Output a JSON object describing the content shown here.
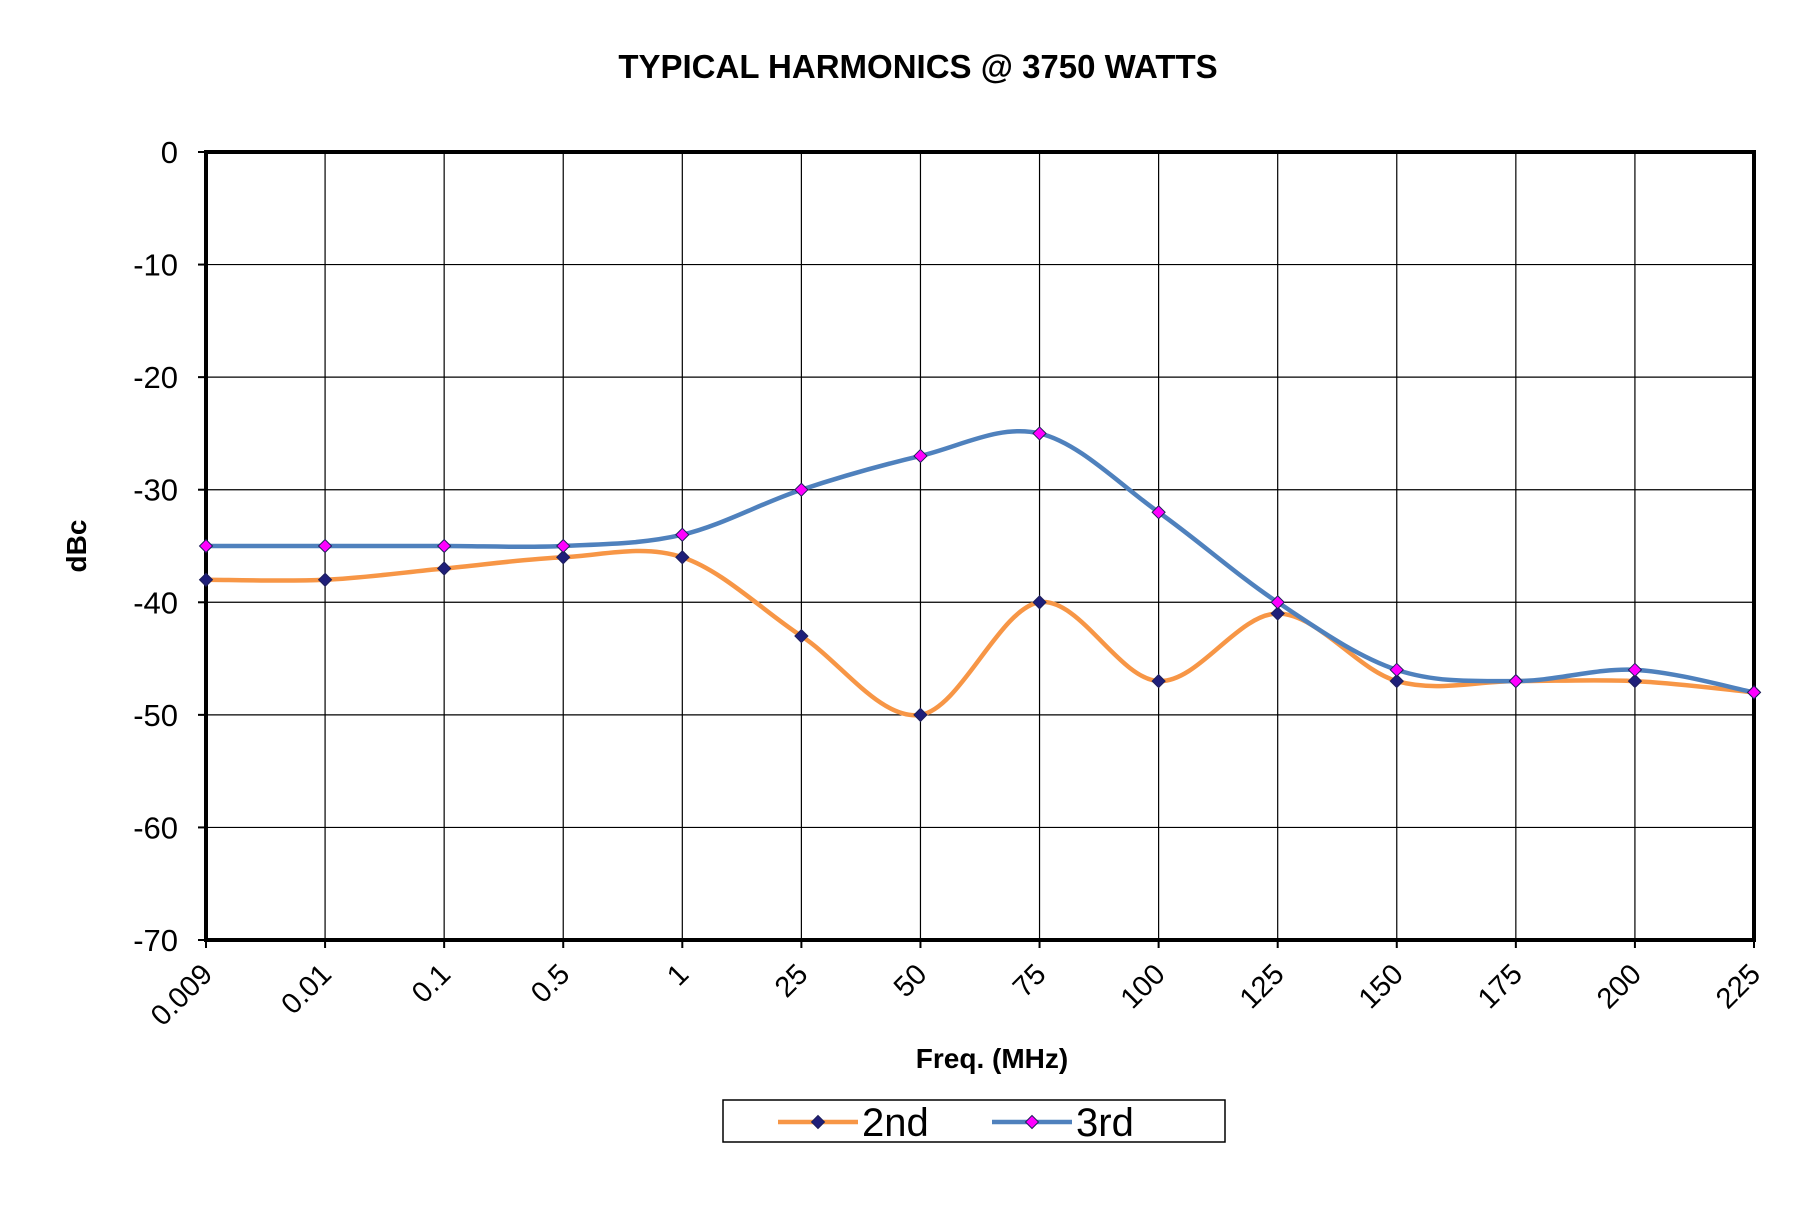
{
  "chart_data": {
    "type": "line",
    "title": "TYPICAL HARMONICS @ 3750 WATTS",
    "xlabel": "Freq. (MHz)",
    "ylabel": "dBc",
    "categories": [
      "0.009",
      "0.01",
      "0.1",
      "0.5",
      "1",
      "25",
      "50",
      "75",
      "100",
      "125",
      "150",
      "175",
      "200",
      "225"
    ],
    "ylim": [
      -70,
      0
    ],
    "yticks": [
      0,
      -10,
      -20,
      -30,
      -40,
      -50,
      -60,
      -70
    ],
    "grid": true,
    "legend_position": "bottom",
    "series": [
      {
        "name": "2nd",
        "color": "#f79646",
        "marker_color": "#1f1f7a",
        "values": [
          -38,
          -38,
          -37,
          -36,
          -36,
          -43,
          -50,
          -40,
          -47,
          -41,
          -47,
          -47,
          -47,
          -48
        ]
      },
      {
        "name": "3rd",
        "color": "#4f81bd",
        "marker_color": "#ff00ff",
        "values": [
          -35,
          -35,
          -35,
          -35,
          -34,
          -30,
          -27,
          -25,
          -32,
          -40,
          -46,
          -47,
          -46,
          -48
        ]
      }
    ]
  }
}
